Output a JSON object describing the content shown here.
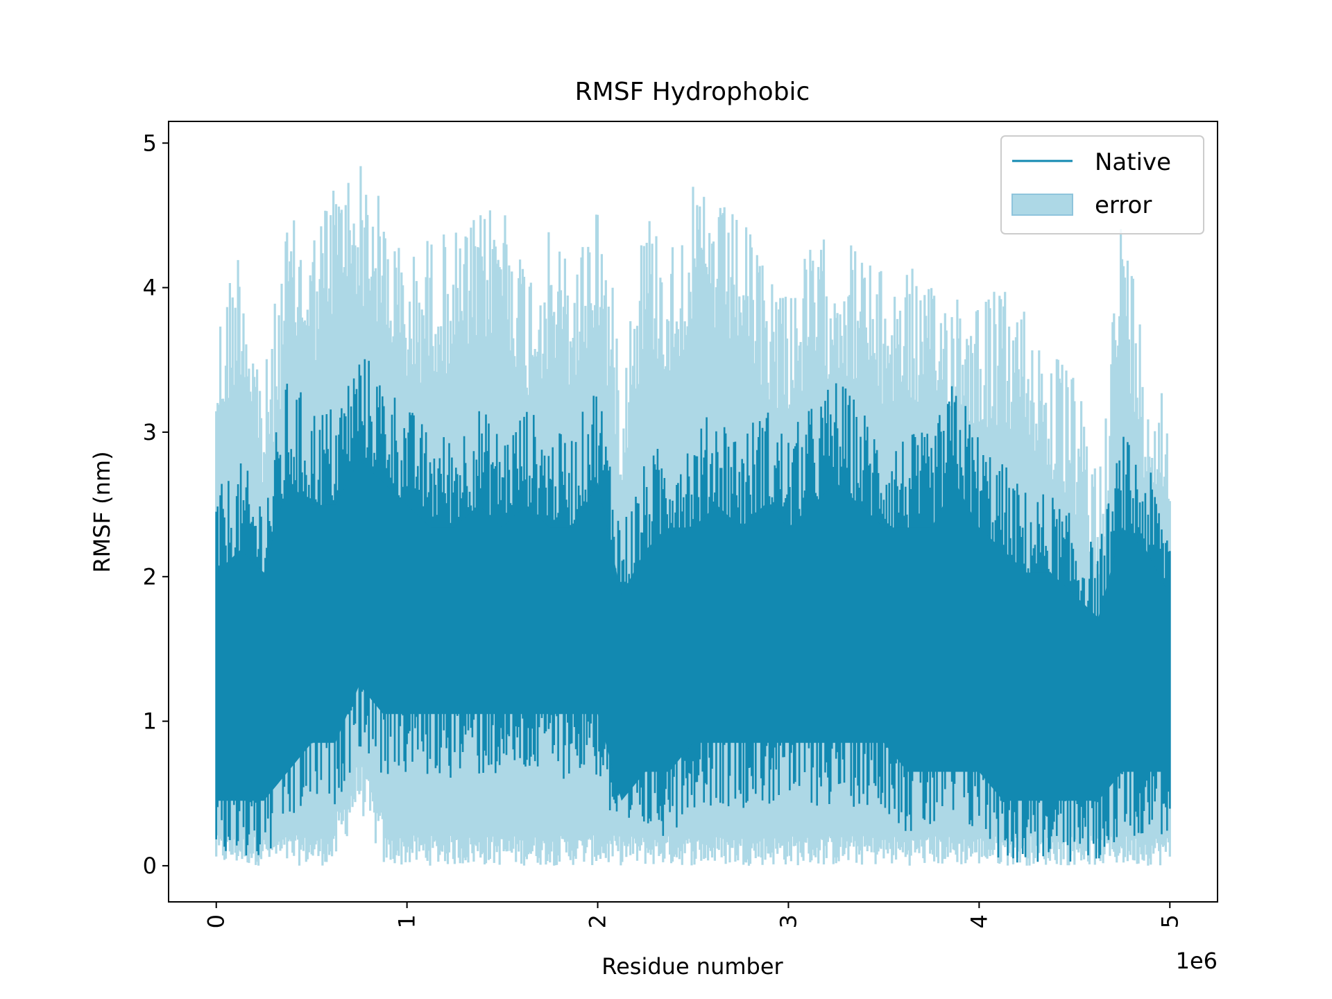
{
  "chart_data": {
    "type": "line",
    "title": "RMSF Hydrophobic",
    "xlabel": "Residue number",
    "ylabel": "RMSF (nm)",
    "x_offset_label": "1e6",
    "xlim": [
      -250000,
      5250000
    ],
    "ylim": [
      -0.25,
      5.15
    ],
    "x_ticks": [
      {
        "value": 0,
        "label": "0"
      },
      {
        "value": 1000000,
        "label": "1"
      },
      {
        "value": 2000000,
        "label": "2"
      },
      {
        "value": 3000000,
        "label": "3"
      },
      {
        "value": 4000000,
        "label": "4"
      },
      {
        "value": 5000000,
        "label": "5"
      }
    ],
    "y_ticks": [
      {
        "value": 0,
        "label": "0"
      },
      {
        "value": 1,
        "label": "1"
      },
      {
        "value": 2,
        "label": "2"
      },
      {
        "value": 3,
        "label": "3"
      },
      {
        "value": 4,
        "label": "4"
      },
      {
        "value": 5,
        "label": "5"
      }
    ],
    "x_tick_rotation": "vertical",
    "grid": false,
    "legend_position": "top-right",
    "series": [
      {
        "name": "Native",
        "kind": "line",
        "color": "#1289b1",
        "x": [
          0,
          125000,
          250000,
          375000,
          500000,
          625000,
          750000,
          875000,
          1000000,
          1125000,
          1250000,
          1375000,
          1500000,
          1625000,
          1750000,
          1875000,
          2000000,
          2125000,
          2250000,
          2375000,
          2500000,
          2625000,
          2750000,
          2875000,
          3000000,
          3125000,
          3250000,
          3375000,
          3500000,
          3625000,
          3750000,
          3875000,
          4000000,
          4125000,
          4250000,
          4375000,
          4500000,
          4625000,
          4750000,
          4875000,
          5000000
        ],
        "y_min": [
          0,
          0,
          0,
          0.2,
          0.4,
          0.4,
          0.8,
          0.6,
          0.6,
          0.6,
          0.6,
          0.6,
          0.6,
          0.6,
          0.6,
          0.6,
          0.6,
          0,
          0.2,
          0.2,
          0.4,
          0.4,
          0.4,
          0.4,
          0.4,
          0.4,
          0.4,
          0.4,
          0.4,
          0.2,
          0.2,
          0.2,
          0.2,
          0,
          0,
          0,
          0,
          0,
          0.2,
          0.2,
          0.2
        ],
        "y_max": [
          2.6,
          2.8,
          2.6,
          3.4,
          3.2,
          3.2,
          3.6,
          3.4,
          3.2,
          3.0,
          3.0,
          3.2,
          3.0,
          3.2,
          3.0,
          3.0,
          3.4,
          2.4,
          2.8,
          3.0,
          3.0,
          3.2,
          3.0,
          3.2,
          3.0,
          3.2,
          3.4,
          3.2,
          3.0,
          3.0,
          3.0,
          3.4,
          3.0,
          2.8,
          2.6,
          2.6,
          2.4,
          2.2,
          3.0,
          2.8,
          2.4
        ]
      },
      {
        "name": "error",
        "kind": "band",
        "color": "#add8e6",
        "x": [
          0,
          125000,
          250000,
          375000,
          500000,
          625000,
          750000,
          875000,
          1000000,
          1125000,
          1250000,
          1375000,
          1500000,
          1625000,
          1750000,
          1875000,
          2000000,
          2125000,
          2250000,
          2375000,
          2500000,
          2625000,
          2750000,
          2875000,
          3000000,
          3125000,
          3250000,
          3375000,
          3500000,
          3625000,
          3750000,
          3875000,
          4000000,
          4125000,
          4250000,
          4375000,
          4500000,
          4625000,
          4750000,
          4875000,
          5000000
        ],
        "lower": [
          0,
          0,
          0,
          0,
          0,
          0,
          0.4,
          0,
          0,
          0,
          0,
          0,
          0,
          0,
          0,
          0,
          0,
          0,
          0,
          0,
          0,
          0,
          0,
          0,
          0,
          0,
          0,
          0,
          0,
          0,
          0,
          0,
          0,
          0,
          0,
          0,
          0,
          0,
          0,
          0,
          0
        ],
        "upper": [
          3.8,
          4.4,
          3.4,
          4.5,
          4.4,
          4.8,
          4.9,
          4.6,
          4.2,
          4.4,
          4.4,
          4.5,
          4.7,
          4.2,
          4.4,
          4.2,
          4.7,
          3.6,
          4.6,
          4.3,
          4.7,
          4.6,
          4.5,
          4.2,
          4.1,
          4.3,
          4.4,
          4.3,
          4.1,
          4.2,
          4.0,
          4.1,
          4.0,
          4.0,
          3.9,
          3.6,
          3.4,
          2.8,
          4.6,
          3.6,
          3.3
        ]
      }
    ]
  }
}
